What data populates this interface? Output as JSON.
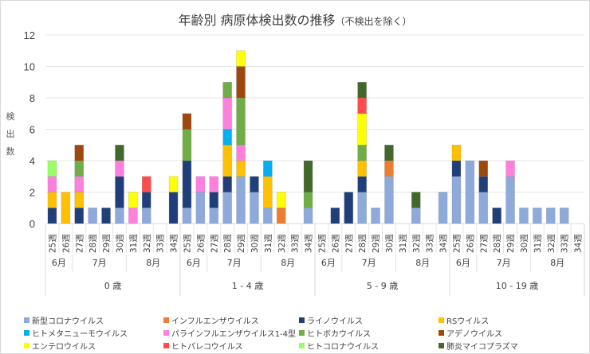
{
  "chart_data": {
    "type": "bar",
    "stacked": true,
    "title": "年齢別 病原体検出数の推移",
    "subtitle": "（不検出を除く）",
    "ylabel": "検出数",
    "xlabel": "",
    "ylim": [
      0,
      12
    ],
    "yticks": [
      0,
      2,
      4,
      6,
      8,
      10,
      12
    ],
    "grid": true,
    "legend_position": "bottom",
    "week_suffix": "週",
    "age_groups": [
      "0 歳",
      "1 - 4 歳",
      "5 - 9 歳",
      "10 - 19 歳"
    ],
    "weeks": [
      "25",
      "26",
      "27",
      "28",
      "29",
      "30",
      "31",
      "32",
      "33",
      "34"
    ],
    "months": [
      {
        "label": "6月",
        "weeks": 2
      },
      {
        "label": "7月",
        "weeks": 4
      },
      {
        "label": "8月",
        "weeks": 4
      }
    ],
    "series": [
      {
        "name": "新型コロナウイルス",
        "color": "#8eaadb",
        "values": [
          0,
          0,
          0,
          1,
          0,
          1,
          0,
          1,
          0,
          0,
          1,
          2,
          1,
          2,
          3,
          2,
          1,
          0,
          0,
          1,
          0,
          0,
          0,
          2,
          1,
          3,
          0,
          1,
          0,
          2,
          3,
          4,
          2,
          0,
          3,
          1,
          1,
          1,
          1,
          0
        ]
      },
      {
        "name": "インフルエンザウイルス",
        "color": "#ed7d31",
        "values": [
          0,
          0,
          0,
          0,
          0,
          0,
          0,
          0,
          0,
          0,
          0,
          0,
          0,
          0,
          0,
          0,
          0,
          1,
          0,
          0,
          0,
          0,
          0,
          0,
          0,
          1,
          0,
          0,
          0,
          0,
          0,
          0,
          0,
          0,
          0,
          0,
          0,
          0,
          0,
          0
        ]
      },
      {
        "name": "ライノウイルス",
        "color": "#203f7a",
        "values": [
          1,
          0,
          1,
          0,
          1,
          2,
          0,
          1,
          0,
          2,
          3,
          0,
          1,
          1,
          0,
          1,
          0,
          0,
          0,
          0,
          0,
          1,
          2,
          1,
          0,
          0,
          0,
          0,
          0,
          0,
          1,
          0,
          1,
          1,
          0,
          0,
          0,
          0,
          0,
          0
        ]
      },
      {
        "name": "RSウイルス",
        "color": "#ffc000",
        "values": [
          1,
          2,
          1,
          0,
          0,
          0,
          0,
          0,
          0,
          0,
          0,
          0,
          0,
          2,
          1,
          0,
          2,
          0,
          0,
          0,
          0,
          0,
          0,
          1,
          0,
          0,
          0,
          0,
          0,
          0,
          1,
          0,
          0,
          0,
          0,
          0,
          0,
          0,
          0,
          0
        ]
      },
      {
        "name": "ヒトメタニューモウイルス",
        "color": "#00b0f0",
        "values": [
          0,
          0,
          0,
          0,
          0,
          0,
          0,
          0,
          0,
          0,
          0,
          0,
          0,
          1,
          0,
          0,
          1,
          0,
          0,
          0,
          0,
          0,
          0,
          0,
          0,
          0,
          0,
          0,
          0,
          0,
          0,
          0,
          0,
          0,
          0,
          0,
          0,
          0,
          0,
          0
        ]
      },
      {
        "name": "パラインフルエンザウイルス1-4型",
        "color": "#ff7fdf",
        "values": [
          1,
          0,
          1,
          0,
          0,
          1,
          1,
          0,
          0,
          0,
          0,
          1,
          1,
          2,
          1,
          0,
          0,
          0,
          0,
          0,
          0,
          0,
          0,
          0,
          0,
          0,
          0,
          0,
          0,
          0,
          0,
          0,
          0,
          0,
          1,
          0,
          0,
          0,
          0,
          0
        ]
      },
      {
        "name": "ヒトボカウイルス",
        "color": "#70ad47",
        "values": [
          0,
          0,
          1,
          0,
          0,
          0,
          0,
          0,
          0,
          0,
          2,
          0,
          0,
          1,
          3,
          0,
          0,
          0,
          0,
          1,
          0,
          0,
          0,
          1,
          0,
          0,
          0,
          0,
          0,
          0,
          0,
          0,
          0,
          0,
          0,
          0,
          0,
          0,
          0,
          0
        ]
      },
      {
        "name": "アデノウイルス",
        "color": "#9e480e",
        "values": [
          0,
          0,
          1,
          0,
          0,
          0,
          0,
          0,
          0,
          0,
          1,
          0,
          0,
          0,
          2,
          0,
          0,
          0,
          0,
          0,
          0,
          0,
          0,
          0,
          0,
          0,
          0,
          0,
          0,
          0,
          0,
          0,
          1,
          0,
          0,
          0,
          0,
          0,
          0,
          0
        ]
      },
      {
        "name": "エンテロウイルス",
        "color": "#ffff00",
        "values": [
          0,
          0,
          0,
          0,
          0,
          0,
          1,
          0,
          0,
          1,
          0,
          0,
          0,
          0,
          1,
          0,
          0,
          1,
          0,
          0,
          0,
          0,
          0,
          2,
          0,
          0,
          0,
          0,
          0,
          0,
          0,
          0,
          0,
          0,
          0,
          0,
          0,
          0,
          0,
          0
        ]
      },
      {
        "name": "ヒトパレコウイルス",
        "color": "#ff4b4b",
        "values": [
          0,
          0,
          0,
          0,
          0,
          0,
          0,
          1,
          0,
          0,
          0,
          0,
          0,
          0,
          0,
          0,
          0,
          0,
          0,
          0,
          0,
          0,
          0,
          1,
          0,
          0,
          0,
          0,
          0,
          0,
          0,
          0,
          0,
          0,
          0,
          0,
          0,
          0,
          0,
          0
        ]
      },
      {
        "name": "ヒトコロナウイルス",
        "color": "#99ff66",
        "values": [
          1,
          0,
          0,
          0,
          0,
          0,
          0,
          0,
          0,
          0,
          0,
          0,
          0,
          0,
          0,
          0,
          0,
          0,
          0,
          0,
          0,
          0,
          0,
          0,
          0,
          0,
          0,
          0,
          0,
          0,
          0,
          0,
          0,
          0,
          0,
          0,
          0,
          0,
          0,
          0
        ]
      },
      {
        "name": "肺炎マイコプラズマ",
        "color": "#43682b",
        "values": [
          0,
          0,
          0,
          0,
          0,
          1,
          0,
          0,
          0,
          0,
          0,
          0,
          0,
          0,
          0,
          0,
          0,
          0,
          0,
          2,
          0,
          0,
          0,
          1,
          0,
          1,
          0,
          1,
          0,
          0,
          0,
          0,
          0,
          0,
          0,
          0,
          0,
          0,
          0,
          0
        ]
      }
    ]
  }
}
